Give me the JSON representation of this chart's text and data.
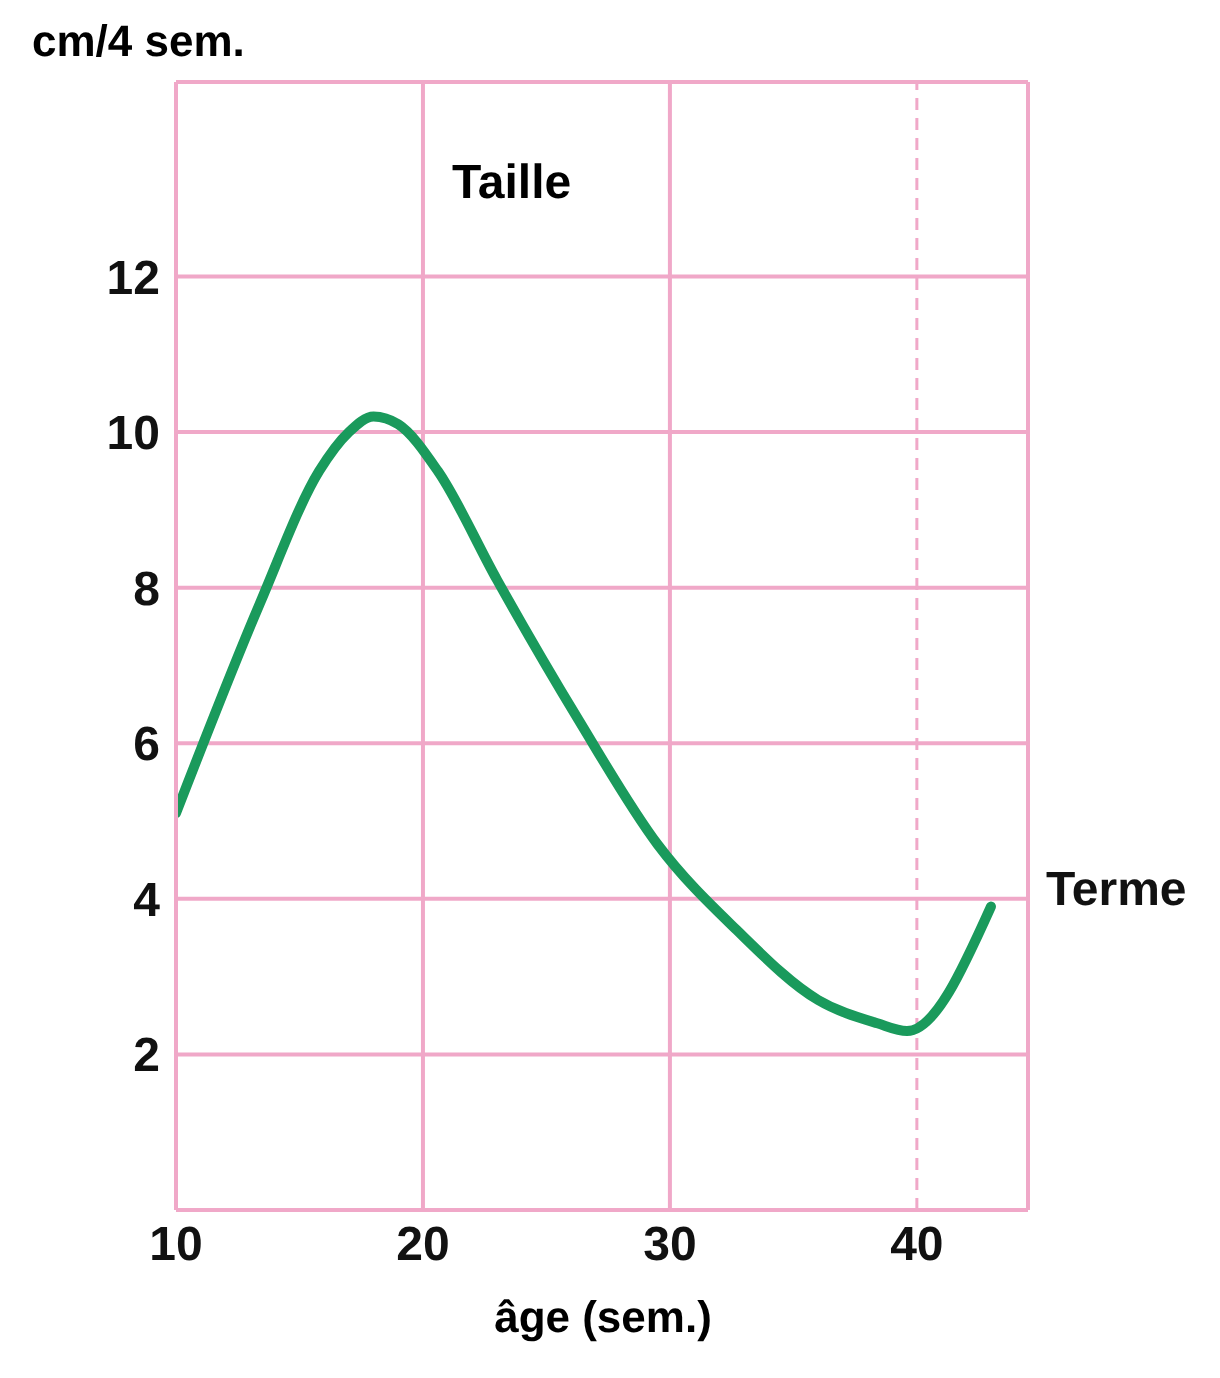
{
  "chart_data": {
    "type": "line",
    "title": "Taille",
    "ylabel": "cm/4 sem.",
    "xlabel": "âge (sem.)",
    "series": [
      {
        "color": "#1a9a5c",
        "x": [
          10,
          13.4,
          15.8,
          17,
          18,
          19,
          20.6,
          23,
          26.3,
          29.5,
          32.7,
          36,
          38.4,
          39.6,
          43
        ],
        "values": [
          5.1,
          7.8,
          9.5,
          10,
          10.2,
          10.1,
          9.5,
          8.1,
          6.3,
          4.7,
          3.6,
          2.7,
          2.4,
          2.3,
          3.9
        ]
      }
    ],
    "xlim": [
      10,
      44.5
    ],
    "xticks": [
      10,
      20,
      30,
      40
    ],
    "ylim": [
      0,
      14.5
    ],
    "yticks": [
      2,
      4,
      6,
      8,
      10,
      12
    ],
    "grid": true,
    "marker": "none",
    "line_style": "solid",
    "ref_lines": [
      {
        "axis": "x",
        "value": 40,
        "label": "Terme",
        "color": "#f0a8c8",
        "line_style": "dashed"
      }
    ]
  }
}
